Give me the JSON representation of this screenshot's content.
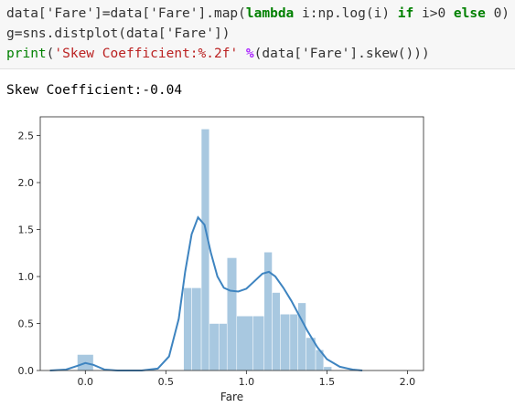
{
  "code_cell": {
    "line1": {
      "a": "data['Fare']=data['Fare'].map(",
      "kw_lambda": "lambda",
      "b": " i:np.log(i) ",
      "kw_if": "if",
      "c": " i>0 ",
      "kw_else": "else",
      "d": " 0)"
    },
    "line2": {
      "a": "g=sns.distplot(data['Fare'])"
    },
    "line3": {
      "fn_print": "print",
      "a": "(",
      "str": "'Skew Coefficient:%.2f'",
      "b": " ",
      "op": "%",
      "c": "(data['Fare'].skew()))"
    }
  },
  "output": {
    "text": "Skew Coefficient:-0.04"
  },
  "chart_data": {
    "type": "bar",
    "xlabel": "Fare",
    "ylabel": "",
    "xlim": [
      -0.28,
      2.1
    ],
    "ylim": [
      0,
      2.7
    ],
    "xticks": [
      "0.0",
      "0.5",
      "1.0",
      "1.5",
      "2.0"
    ],
    "yticks": [
      "0.0",
      "0.5",
      "1.0",
      "1.5",
      "2.0",
      "2.5"
    ],
    "bar_color": "#a8c8e0",
    "kde_color": "#3e84c0",
    "bins": [
      {
        "x0": -0.05,
        "x1": 0.05,
        "y": 0.17
      },
      {
        "x0": 0.05,
        "x1": 0.61,
        "y": 0.0
      },
      {
        "x0": 0.61,
        "x1": 0.66,
        "y": 0.88
      },
      {
        "x0": 0.66,
        "x1": 0.72,
        "y": 0.88
      },
      {
        "x0": 0.72,
        "x1": 0.77,
        "y": 2.57
      },
      {
        "x0": 0.77,
        "x1": 0.83,
        "y": 0.5
      },
      {
        "x0": 0.83,
        "x1": 0.88,
        "y": 0.5
      },
      {
        "x0": 0.88,
        "x1": 0.94,
        "y": 1.2
      },
      {
        "x0": 0.94,
        "x1": 1.04,
        "y": 0.58
      },
      {
        "x0": 1.04,
        "x1": 1.11,
        "y": 0.58
      },
      {
        "x0": 1.11,
        "x1": 1.16,
        "y": 1.26
      },
      {
        "x0": 1.16,
        "x1": 1.21,
        "y": 0.83
      },
      {
        "x0": 1.21,
        "x1": 1.27,
        "y": 0.6
      },
      {
        "x0": 1.27,
        "x1": 1.32,
        "y": 0.6
      },
      {
        "x0": 1.32,
        "x1": 1.37,
        "y": 0.72
      },
      {
        "x0": 1.37,
        "x1": 1.43,
        "y": 0.35
      },
      {
        "x0": 1.43,
        "x1": 1.48,
        "y": 0.22
      },
      {
        "x0": 1.48,
        "x1": 1.53,
        "y": 0.04
      }
    ],
    "kde": [
      [
        -0.22,
        0.0
      ],
      [
        -0.12,
        0.01
      ],
      [
        -0.05,
        0.05
      ],
      [
        0.0,
        0.08
      ],
      [
        0.05,
        0.06
      ],
      [
        0.12,
        0.01
      ],
      [
        0.2,
        0.0
      ],
      [
        0.35,
        0.0
      ],
      [
        0.45,
        0.02
      ],
      [
        0.52,
        0.15
      ],
      [
        0.58,
        0.55
      ],
      [
        0.62,
        1.05
      ],
      [
        0.66,
        1.45
      ],
      [
        0.7,
        1.63
      ],
      [
        0.74,
        1.55
      ],
      [
        0.78,
        1.25
      ],
      [
        0.82,
        1.0
      ],
      [
        0.86,
        0.88
      ],
      [
        0.9,
        0.85
      ],
      [
        0.95,
        0.84
      ],
      [
        1.0,
        0.87
      ],
      [
        1.05,
        0.95
      ],
      [
        1.1,
        1.03
      ],
      [
        1.14,
        1.05
      ],
      [
        1.18,
        1.0
      ],
      [
        1.23,
        0.88
      ],
      [
        1.28,
        0.74
      ],
      [
        1.33,
        0.58
      ],
      [
        1.38,
        0.42
      ],
      [
        1.44,
        0.25
      ],
      [
        1.5,
        0.12
      ],
      [
        1.58,
        0.04
      ],
      [
        1.66,
        0.01
      ],
      [
        1.72,
        0.0
      ]
    ]
  }
}
